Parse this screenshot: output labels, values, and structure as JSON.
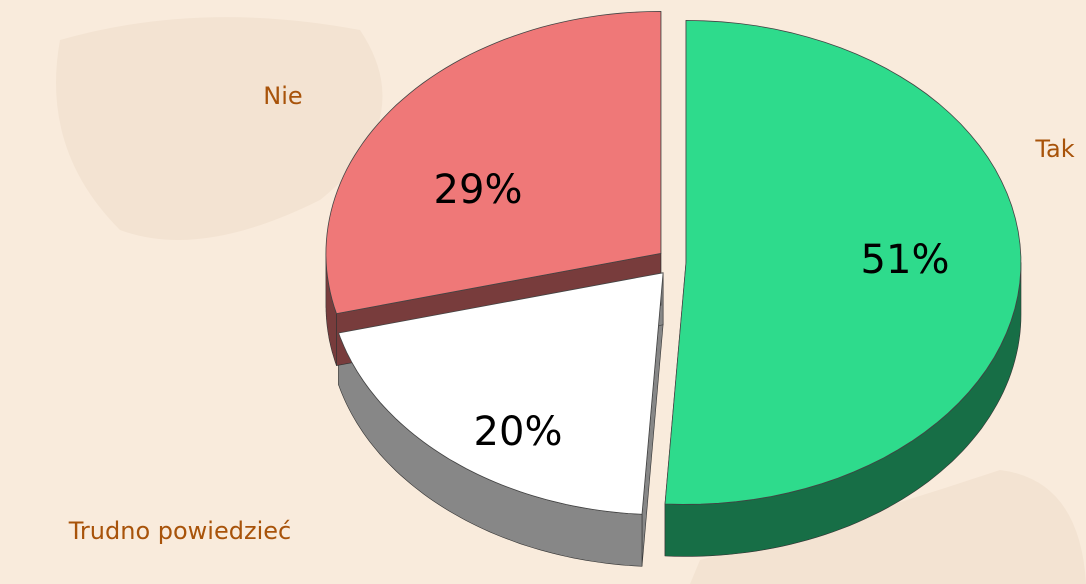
{
  "chart_data": {
    "type": "pie",
    "categories": [
      "Tak",
      "Trudno powiedzieć",
      "Nie"
    ],
    "values": [
      51,
      20,
      29
    ],
    "value_labels": [
      "51%",
      "20%",
      "29%"
    ],
    "colors": [
      "#2edb8c",
      "#ffffff",
      "#ef7878"
    ]
  }
}
